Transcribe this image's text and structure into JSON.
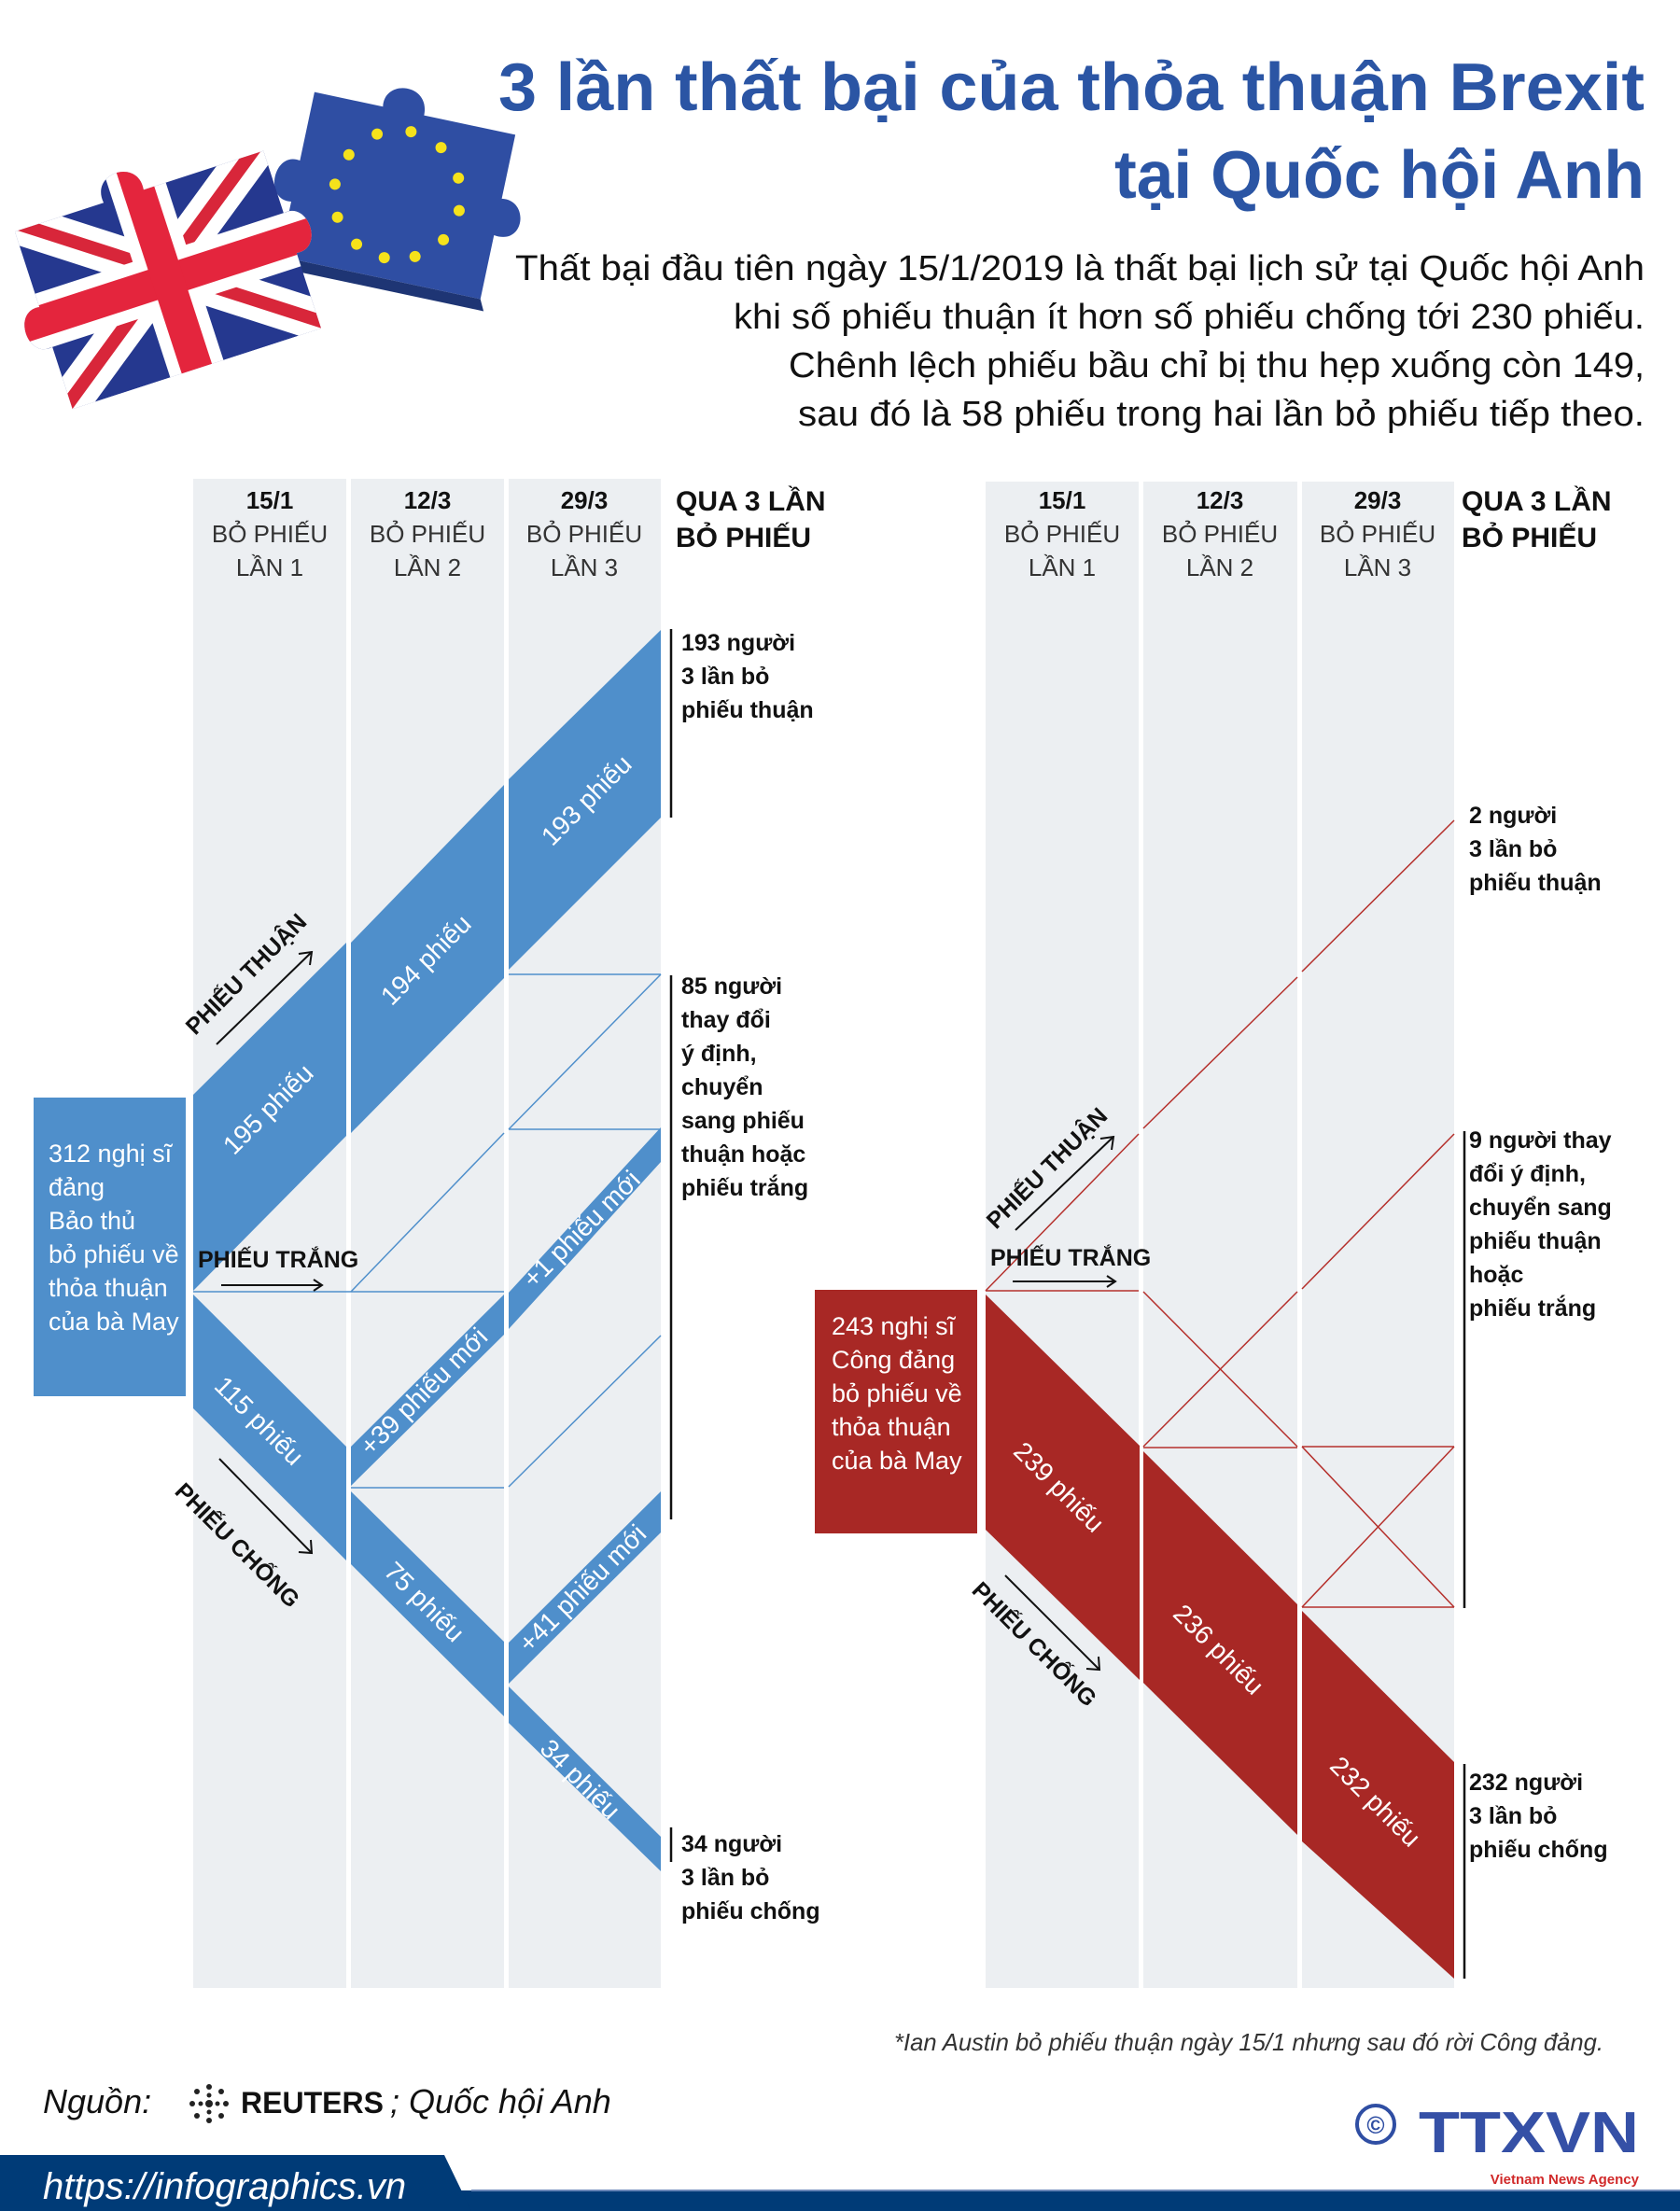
{
  "title": {
    "line1": "3 lần thất bại của thỏa thuận Brexit",
    "line2": "tại Quốc hội Anh"
  },
  "intro": [
    "Thất bại đầu tiên ngày 15/1/2019  là thất bại lịch sử tại Quốc hội Anh",
    "khi số phiếu thuận ít hơn số phiếu chống tới 230 phiếu.",
    "Chênh lệch phiếu bầu chỉ bị thu hẹp xuống còn 149,",
    "sau đó là 58 phiếu trong hai lần bỏ phiếu tiếp theo."
  ],
  "columns": [
    {
      "date": "15/1",
      "label": "BỎ PHIẾU",
      "round": "LẦN 1"
    },
    {
      "date": "12/3",
      "label": "BỎ PHIẾU",
      "round": "LẦN 2"
    },
    {
      "date": "29/3",
      "label": "BỎ PHIẾU",
      "round": "LẦN 3"
    }
  ],
  "summary_header": [
    "QUA 3 LẦN",
    "BỎ PHIẾU"
  ],
  "flow_labels": {
    "for": "PHIẾU THUẬN",
    "abstain": "PHIẾU TRẮNG",
    "against": "PHIẾU CHỐNG"
  },
  "conservative": {
    "box": [
      "312 nghị sĩ",
      "đảng",
      "Bảo thủ",
      "bỏ phiếu về",
      "thỏa thuận",
      "của bà May"
    ],
    "for_bands": [
      "195 phiếu",
      "194 phiếu",
      "193 phiếu"
    ],
    "against_bands": [
      "115 phiếu",
      "75 phiếu",
      "34 phiếu"
    ],
    "new_for_bands": [
      "+39 phiếu mới",
      "+1 phiếu mới",
      "+41 phiếu mới"
    ],
    "notes": {
      "always_for": [
        "193 người",
        "3 lần bỏ",
        "phiếu thuận"
      ],
      "changed": [
        "85 người",
        "thay đổi",
        "ý định,",
        "chuyển",
        "sang phiếu",
        "thuận hoặc",
        "phiếu trắng"
      ],
      "always_against": [
        "34 người",
        "3 lần bỏ",
        "phiếu chống"
      ]
    }
  },
  "labour": {
    "box": [
      "243 nghị sĩ",
      "Công đảng",
      "bỏ phiếu về",
      "thỏa thuận",
      "của bà May"
    ],
    "against_bands": [
      "239 phiếu",
      "236 phiếu",
      "232 phiếu"
    ],
    "notes": {
      "always_for": [
        "2 người",
        "3 lần bỏ",
        "phiếu thuận"
      ],
      "changed": [
        "9 người thay",
        "đổi ý định,",
        "chuyển sang",
        "phiếu thuận",
        "hoặc",
        "phiếu trắng"
      ],
      "always_against": [
        "232 người",
        "3 lần bỏ",
        "phiếu chống"
      ]
    }
  },
  "footnote": "*Ian Austin bỏ phiếu thuận ngày 15/1 nhưng sau đó rời Công đảng.",
  "source": {
    "label": "Nguồn:",
    "reuters": "REUTERS",
    "rest": "; Quốc hội Anh"
  },
  "url": "https://infographics.vn",
  "logo": {
    "copyright": "©",
    "text": "TTXVN",
    "sub": "Vietnam News Agency"
  },
  "colors": {
    "title": "#2b55a4",
    "conservative": "#4f8fcb",
    "labour": "#a82825",
    "column": "#eceff2",
    "footer": "#003b77"
  }
}
